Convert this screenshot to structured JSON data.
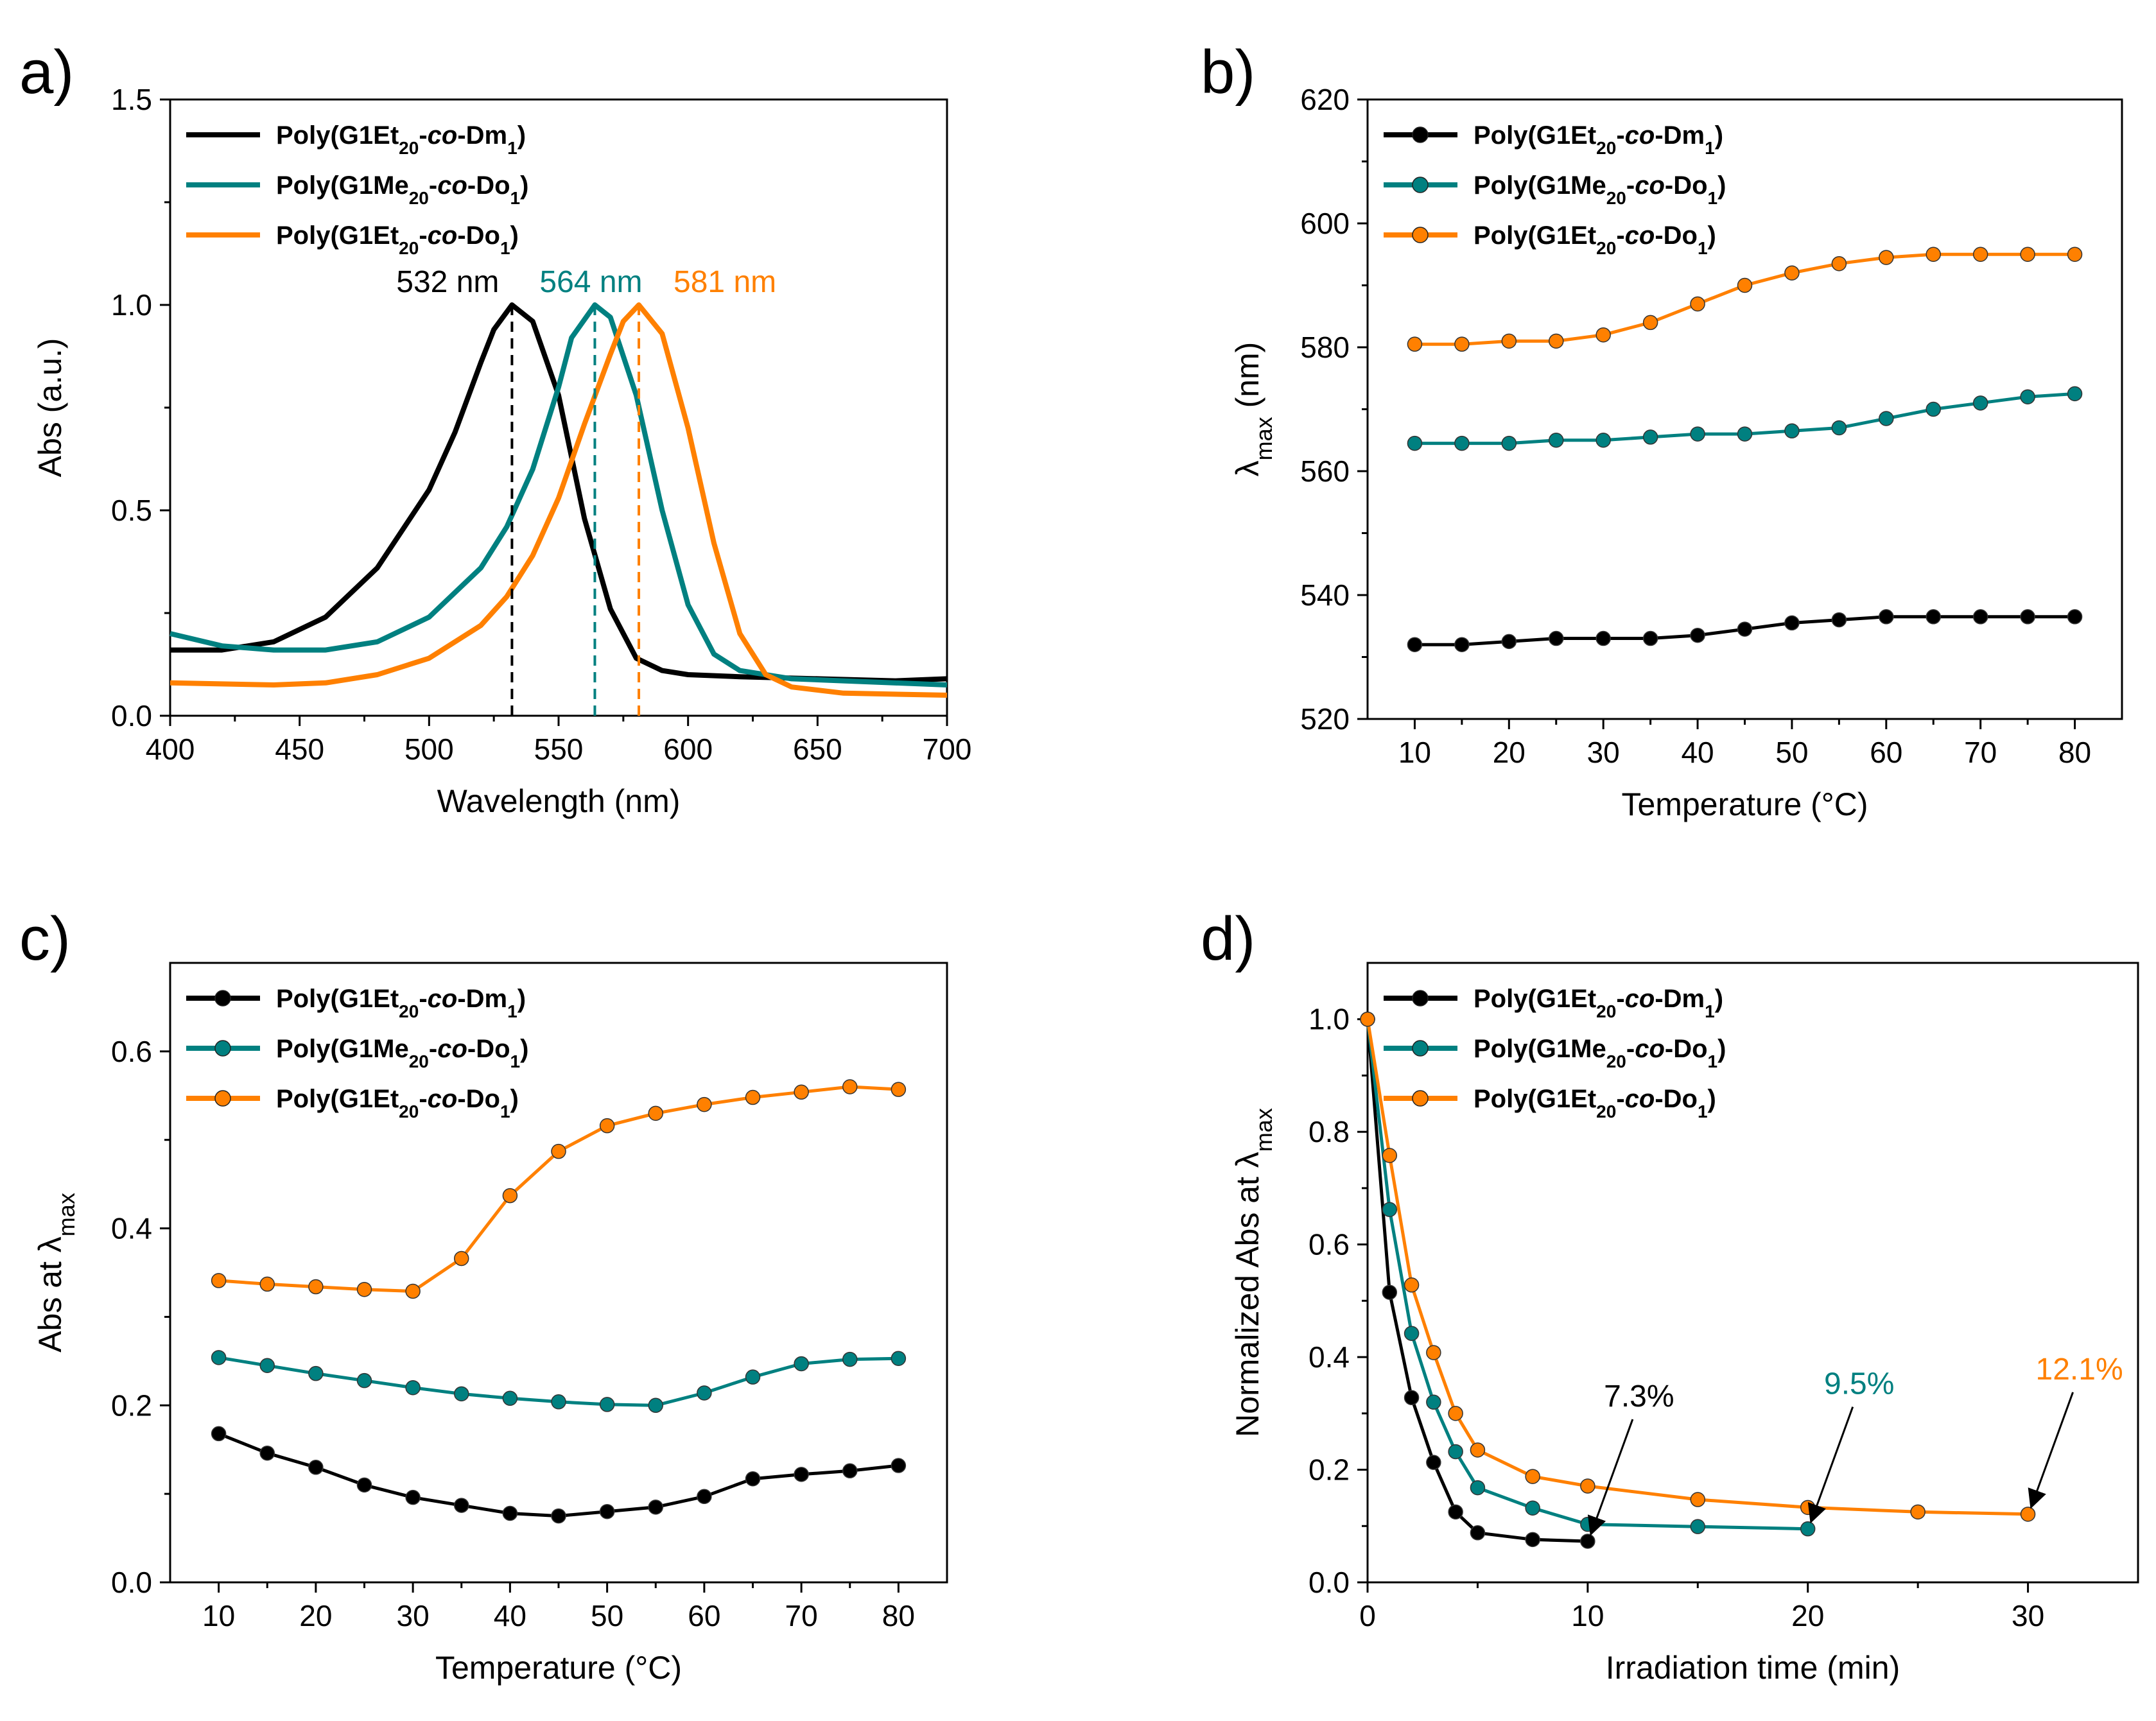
{
  "colors": {
    "black": "#000000",
    "teal": "#008080",
    "orange": "#ff8000"
  },
  "legend_labels": [
    {
      "base": "Poly(G1Et",
      "sub1": "20",
      "mid": "-",
      "co": "co",
      "tail": "-Dm",
      "sub2": "1",
      "close": ")"
    },
    {
      "base": "Poly(G1Me",
      "sub1": "20",
      "mid": "-",
      "co": "co",
      "tail": "-Do",
      "sub2": "1",
      "close": ")"
    },
    {
      "base": "Poly(G1Et",
      "sub1": "20",
      "mid": "-",
      "co": "co",
      "tail": "-Do",
      "sub2": "1",
      "close": ")"
    }
  ],
  "chart_data": [
    {
      "panel": "a)",
      "type": "line",
      "xlabel": "Wavelength (nm)",
      "ylabel": "Abs (a.u.)",
      "xlim": [
        400,
        700
      ],
      "ylim": [
        0,
        1.5
      ],
      "xticks": [
        "400",
        "450",
        "500",
        "550",
        "600",
        "650",
        "700"
      ],
      "yticks": [
        "0.0",
        "0.5",
        "1.0",
        "1.5"
      ],
      "markers": false,
      "legend": "top-left",
      "series": [
        {
          "name": "Poly(G1Et20-co-Dm1)",
          "color": "#000000",
          "x": [
            400,
            420,
            440,
            460,
            480,
            500,
            510,
            520,
            525,
            532,
            540,
            550,
            560,
            570,
            580,
            590,
            600,
            620,
            650,
            680,
            700
          ],
          "y": [
            0.16,
            0.16,
            0.18,
            0.24,
            0.36,
            0.55,
            0.69,
            0.86,
            0.94,
            1.0,
            0.96,
            0.78,
            0.48,
            0.26,
            0.14,
            0.11,
            0.1,
            0.095,
            0.09,
            0.085,
            0.09
          ]
        },
        {
          "name": "Poly(G1Me20-co-Do1)",
          "color": "#008080",
          "x": [
            400,
            420,
            440,
            460,
            480,
            500,
            520,
            530,
            540,
            550,
            555,
            564,
            570,
            580,
            590,
            600,
            610,
            620,
            640,
            660,
            700
          ],
          "y": [
            0.2,
            0.17,
            0.16,
            0.16,
            0.18,
            0.24,
            0.36,
            0.46,
            0.6,
            0.8,
            0.92,
            1.0,
            0.97,
            0.78,
            0.5,
            0.27,
            0.15,
            0.11,
            0.09,
            0.085,
            0.075
          ]
        },
        {
          "name": "Poly(G1Et20-co-Do1)",
          "color": "#ff8000",
          "x": [
            400,
            440,
            460,
            480,
            500,
            520,
            530,
            540,
            550,
            560,
            570,
            575,
            581,
            590,
            600,
            610,
            620,
            630,
            640,
            660,
            700
          ],
          "y": [
            0.08,
            0.075,
            0.08,
            0.1,
            0.14,
            0.22,
            0.29,
            0.39,
            0.53,
            0.71,
            0.88,
            0.96,
            1.0,
            0.93,
            0.7,
            0.42,
            0.2,
            0.1,
            0.07,
            0.055,
            0.05
          ]
        }
      ],
      "peak_annotations": [
        {
          "text": "532 nm",
          "x": 532,
          "color": "#000000"
        },
        {
          "text": "564 nm",
          "x": 564,
          "color": "#008080"
        },
        {
          "text": "581 nm",
          "x": 581,
          "color": "#ff8000"
        }
      ]
    },
    {
      "panel": "b)",
      "type": "line",
      "xlabel": "Temperature (°C)",
      "ylabel_main": "λ",
      "ylabel_sub": "max",
      "ylabel_tail": " (nm)",
      "xlim": [
        5,
        85
      ],
      "ylim": [
        520,
        620
      ],
      "xticks": [
        "10",
        "20",
        "30",
        "40",
        "50",
        "60",
        "70",
        "80"
      ],
      "yticks": [
        "520",
        "540",
        "560",
        "580",
        "600",
        "620"
      ],
      "markers": true,
      "legend": "top-left",
      "series": [
        {
          "name": "Poly(G1Et20-co-Dm1)",
          "color": "#000000",
          "x": [
            10,
            15,
            20,
            25,
            30,
            35,
            40,
            45,
            50,
            55,
            60,
            65,
            70,
            75,
            80
          ],
          "y": [
            532,
            532,
            532.5,
            533,
            533,
            533,
            533.5,
            534.5,
            535.5,
            536,
            536.5,
            536.5,
            536.5,
            536.5,
            536.5
          ]
        },
        {
          "name": "Poly(G1Me20-co-Do1)",
          "color": "#008080",
          "x": [
            10,
            15,
            20,
            25,
            30,
            35,
            40,
            45,
            50,
            55,
            60,
            65,
            70,
            75,
            80
          ],
          "y": [
            564.5,
            564.5,
            564.5,
            565,
            565,
            565.5,
            566,
            566,
            566.5,
            567,
            568.5,
            570,
            571,
            572,
            572.5
          ]
        },
        {
          "name": "Poly(G1Et20-co-Do1)",
          "color": "#ff8000",
          "x": [
            10,
            15,
            20,
            25,
            30,
            35,
            40,
            45,
            50,
            55,
            60,
            65,
            70,
            75,
            80
          ],
          "y": [
            580.5,
            580.5,
            581,
            581,
            582,
            584,
            587,
            590,
            592,
            593.5,
            594.5,
            595,
            595,
            595,
            595
          ]
        }
      ]
    },
    {
      "panel": "c)",
      "type": "line",
      "xlabel": "Temperature (°C)",
      "ylabel_main": "Abs at λ",
      "ylabel_sub": "max",
      "ylabel_tail": "",
      "xlim": [
        5,
        85
      ],
      "ylim": [
        0,
        0.7
      ],
      "xticks": [
        "10",
        "20",
        "30",
        "40",
        "50",
        "60",
        "70",
        "80"
      ],
      "yticks": [
        "0.0",
        "0.2",
        "0.4",
        "0.6"
      ],
      "markers": true,
      "legend": "top-left",
      "series": [
        {
          "name": "Poly(G1Et20-co-Dm1)",
          "color": "#000000",
          "x": [
            10,
            15,
            20,
            25,
            30,
            35,
            40,
            45,
            50,
            55,
            60,
            65,
            70,
            75,
            80
          ],
          "y": [
            0.168,
            0.146,
            0.13,
            0.11,
            0.096,
            0.087,
            0.078,
            0.075,
            0.08,
            0.085,
            0.097,
            0.117,
            0.122,
            0.126,
            0.132
          ]
        },
        {
          "name": "Poly(G1Me20-co-Do1)",
          "color": "#008080",
          "x": [
            10,
            15,
            20,
            25,
            30,
            35,
            40,
            45,
            50,
            55,
            60,
            65,
            70,
            75,
            80
          ],
          "y": [
            0.254,
            0.245,
            0.236,
            0.228,
            0.22,
            0.213,
            0.208,
            0.204,
            0.201,
            0.2,
            0.214,
            0.232,
            0.247,
            0.252,
            0.253
          ]
        },
        {
          "name": "Poly(G1Et20-co-Do1)",
          "color": "#ff8000",
          "x": [
            10,
            15,
            20,
            25,
            30,
            35,
            40,
            45,
            50,
            55,
            60,
            65,
            70,
            75,
            80
          ],
          "y": [
            0.341,
            0.337,
            0.334,
            0.331,
            0.329,
            0.366,
            0.437,
            0.487,
            0.516,
            0.53,
            0.54,
            0.548,
            0.554,
            0.56,
            0.557
          ]
        }
      ]
    },
    {
      "panel": "d)",
      "type": "line",
      "xlabel": "Irradiation time (min)",
      "ylabel_main": "Normalized Abs at λ",
      "ylabel_sub": "max",
      "ylabel_tail": "",
      "xlim": [
        0,
        35
      ],
      "ylim": [
        0,
        1.1
      ],
      "xticks": [
        "0",
        "10",
        "20",
        "30"
      ],
      "yticks": [
        "0.0",
        "0.2",
        "0.4",
        "0.6",
        "0.8",
        "1.0"
      ],
      "markers": true,
      "legend": "top-left",
      "series": [
        {
          "name": "Poly(G1Et20-co-Dm1)",
          "color": "#000000",
          "x": [
            0,
            1,
            2,
            3,
            4,
            5,
            7.5,
            10
          ],
          "y": [
            1.0,
            0.515,
            0.328,
            0.213,
            0.125,
            0.088,
            0.076,
            0.073
          ]
        },
        {
          "name": "Poly(G1Me20-co-Do1)",
          "color": "#008080",
          "x": [
            0,
            1,
            2,
            3,
            4,
            5,
            7.5,
            10,
            15,
            20
          ],
          "y": [
            1.0,
            0.662,
            0.442,
            0.32,
            0.232,
            0.168,
            0.132,
            0.103,
            0.099,
            0.095
          ]
        },
        {
          "name": "Poly(G1Et20-co-Do1)",
          "color": "#ff8000",
          "x": [
            0,
            1,
            2,
            3,
            4,
            5,
            7.5,
            10,
            15,
            20,
            25,
            30
          ],
          "y": [
            1.0,
            0.758,
            0.528,
            0.408,
            0.3,
            0.235,
            0.188,
            0.171,
            0.147,
            0.133,
            0.125,
            0.121
          ]
        }
      ],
      "annotations": [
        {
          "text": "7.3%",
          "x": 10,
          "y": 0.073,
          "color": "#000000"
        },
        {
          "text": "9.5%",
          "x": 20,
          "y": 0.095,
          "color": "#008080"
        },
        {
          "text": "12.1%",
          "x": 30,
          "y": 0.121,
          "color": "#ff8000"
        }
      ]
    }
  ]
}
